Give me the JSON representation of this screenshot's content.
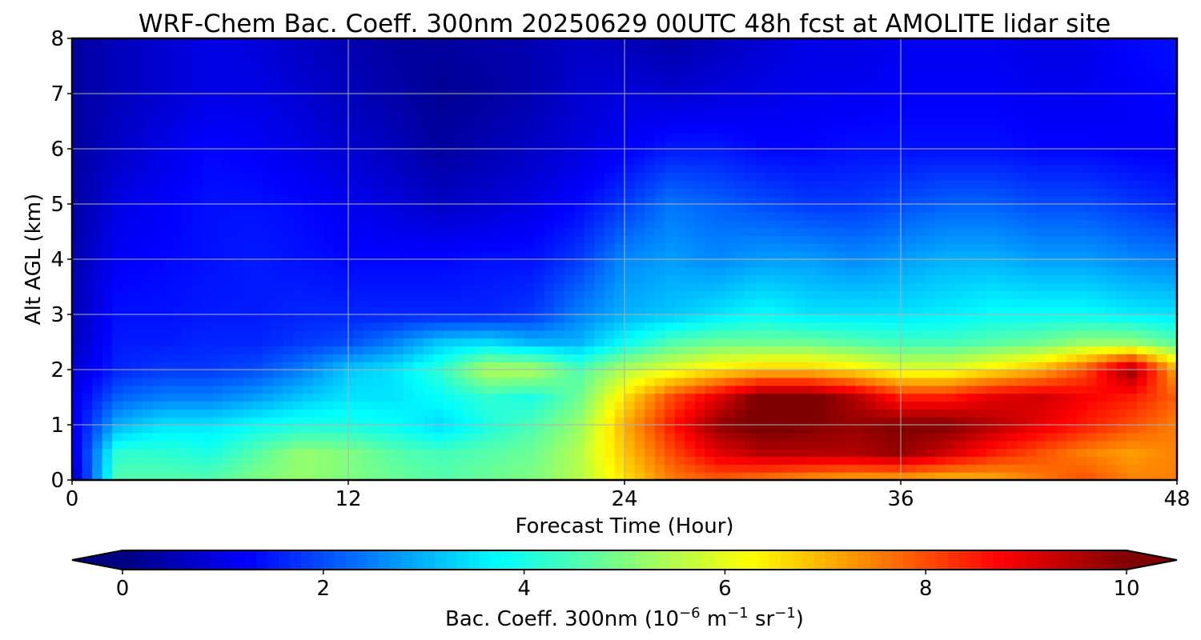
{
  "chart_data": {
    "type": "heatmap",
    "title": "WRF-Chem Bac. Coeff. 300nm  20250629 00UTC 48h fcst at AMOLITE lidar site",
    "xlabel": "Forecast Time (Hour)",
    "ylabel": "Alt AGL (km)",
    "xlim": [
      0,
      48
    ],
    "ylim": [
      0,
      8
    ],
    "x_ticks": [
      0,
      12,
      24,
      36,
      48
    ],
    "y_ticks": [
      0,
      1,
      2,
      3,
      4,
      5,
      6,
      7,
      8
    ],
    "grid": true,
    "colormap": "jet",
    "colorbar": {
      "orientation": "horizontal",
      "placement": "bottom",
      "label_prefix": "Bac. Coeff. 300nm  (10",
      "label_exp1": "−6",
      "label_mid1": " m",
      "label_exp2": "−1",
      "label_mid2": " sr",
      "label_exp3": "−1",
      "label_suffix": ")",
      "range": [
        0,
        10
      ],
      "ticks": [
        0,
        2,
        4,
        6,
        8,
        10
      ],
      "extend": "both"
    },
    "x": [
      0,
      2,
      4,
      6,
      8,
      10,
      12,
      14,
      16,
      18,
      20,
      22,
      24,
      26,
      28,
      30,
      32,
      34,
      36,
      38,
      40,
      42,
      44,
      46,
      48
    ],
    "y": [
      0,
      0.5,
      1,
      1.5,
      2,
      2.5,
      3,
      4,
      5,
      6,
      7,
      8
    ],
    "z": [
      [
        0.5,
        4.6,
        4.6,
        4.6,
        5.0,
        5.2,
        5.0,
        4.8,
        4.6,
        4.8,
        5.0,
        5.5,
        6.5,
        7.5,
        7.8,
        7.5,
        7.2,
        7.0,
        7.0,
        6.8,
        7.0,
        7.5,
        8.0,
        7.5,
        7.5
      ],
      [
        0.8,
        4.2,
        4.2,
        4.0,
        4.6,
        5.2,
        5.0,
        4.6,
        4.4,
        4.6,
        4.8,
        5.5,
        6.8,
        8.0,
        9.0,
        9.5,
        9.5,
        9.5,
        9.8,
        9.2,
        8.5,
        8.0,
        7.5,
        7.2,
        7.5
      ],
      [
        1.0,
        3.0,
        3.5,
        3.5,
        3.8,
        4.0,
        4.0,
        3.8,
        3.4,
        4.0,
        4.5,
        5.2,
        7.0,
        8.5,
        9.8,
        10.2,
        10.0,
        9.8,
        10.0,
        10.0,
        9.5,
        9.0,
        8.5,
        8.0,
        7.5
      ],
      [
        1.0,
        2.2,
        2.5,
        2.5,
        2.8,
        3.2,
        3.5,
        3.5,
        3.8,
        4.2,
        4.0,
        4.8,
        6.5,
        8.0,
        9.0,
        10.2,
        10.2,
        9.5,
        8.5,
        8.5,
        9.0,
        9.2,
        8.8,
        8.5,
        7.8
      ],
      [
        0.8,
        1.6,
        1.8,
        1.8,
        2.0,
        2.5,
        3.2,
        3.5,
        4.2,
        5.5,
        5.5,
        4.5,
        5.5,
        6.0,
        6.5,
        6.8,
        6.8,
        6.5,
        6.0,
        6.0,
        6.5,
        7.0,
        8.0,
        9.8,
        7.0
      ],
      [
        0.6,
        1.5,
        1.5,
        1.6,
        1.6,
        1.8,
        2.0,
        2.5,
        3.2,
        3.4,
        3.0,
        3.0,
        3.8,
        4.5,
        4.8,
        4.8,
        4.8,
        4.6,
        4.4,
        4.4,
        4.6,
        4.8,
        5.2,
        5.2,
        4.6
      ],
      [
        0.5,
        1.4,
        1.4,
        1.5,
        1.5,
        1.6,
        1.6,
        1.6,
        1.6,
        1.6,
        1.8,
        2.5,
        3.0,
        3.2,
        3.5,
        3.8,
        3.5,
        3.5,
        3.5,
        3.6,
        3.8,
        3.8,
        3.8,
        3.6,
        3.5
      ],
      [
        0.4,
        1.2,
        1.3,
        1.4,
        1.5,
        1.4,
        1.3,
        1.3,
        1.3,
        1.4,
        1.4,
        1.8,
        2.6,
        2.8,
        2.6,
        2.8,
        2.8,
        2.6,
        2.8,
        3.0,
        3.0,
        2.8,
        2.8,
        2.6,
        2.5
      ],
      [
        0.3,
        1.0,
        1.2,
        1.4,
        1.4,
        1.3,
        1.1,
        0.9,
        0.7,
        0.8,
        1.0,
        1.3,
        1.8,
        2.4,
        2.2,
        2.0,
        1.8,
        1.8,
        2.0,
        2.2,
        2.2,
        2.0,
        2.0,
        1.8,
        1.6
      ],
      [
        0.3,
        0.7,
        1.0,
        1.3,
        1.2,
        1.0,
        0.8,
        0.6,
        0.3,
        0.5,
        0.7,
        0.9,
        1.2,
        1.5,
        1.5,
        1.3,
        1.3,
        1.4,
        1.4,
        1.4,
        1.4,
        1.3,
        1.3,
        1.2,
        1.2
      ],
      [
        0.3,
        0.6,
        0.8,
        1.0,
        1.0,
        0.8,
        0.6,
        0.4,
        0.2,
        0.3,
        0.5,
        0.8,
        0.9,
        0.8,
        0.9,
        1.0,
        1.1,
        1.1,
        1.2,
        1.2,
        1.2,
        1.1,
        1.1,
        1.2,
        1.3
      ],
      [
        0.3,
        0.6,
        0.8,
        1.0,
        0.9,
        0.7,
        0.5,
        0.3,
        0.3,
        0.4,
        0.5,
        0.7,
        0.6,
        0.4,
        0.6,
        0.8,
        1.0,
        1.0,
        1.1,
        1.1,
        1.1,
        1.0,
        1.0,
        1.3,
        1.4
      ]
    ]
  }
}
